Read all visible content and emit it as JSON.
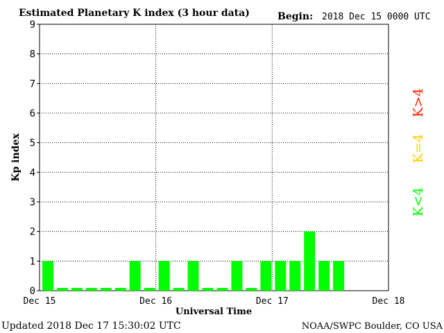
{
  "header": {
    "title": "Estimated Planetary K index (3 hour data)",
    "begin_label": "Begin:",
    "begin_value": "2018 Dec 15 0000 UTC"
  },
  "footer": {
    "updated": "Updated 2018 Dec 17 15:30:02 UTC",
    "source": "NOAA/SWPC Boulder, CO USA"
  },
  "legend": {
    "above": "K>4",
    "equal": "K=4",
    "below": "K<4"
  },
  "colors": {
    "below": "#00ff00",
    "equal": "#ffcc00",
    "above": "#ff2200",
    "axis": "#000000"
  },
  "chart_data": {
    "type": "bar",
    "xlabel": "Universal Time",
    "ylabel": "Kp index",
    "ylim": [
      0,
      9
    ],
    "y_ticks": [
      0,
      1,
      2,
      3,
      4,
      5,
      6,
      7,
      8,
      9
    ],
    "x_ticks": [
      "Dec 15",
      "Dec 16",
      "Dec 17",
      "Dec 18"
    ],
    "grid": "dotted lines at each y tick and each day boundary",
    "interval_hours": 3,
    "values": [
      1,
      0,
      0,
      0,
      0,
      0,
      1,
      0,
      1,
      0,
      1,
      0,
      0,
      1,
      0,
      1,
      1,
      1,
      2,
      1,
      1
    ]
  }
}
